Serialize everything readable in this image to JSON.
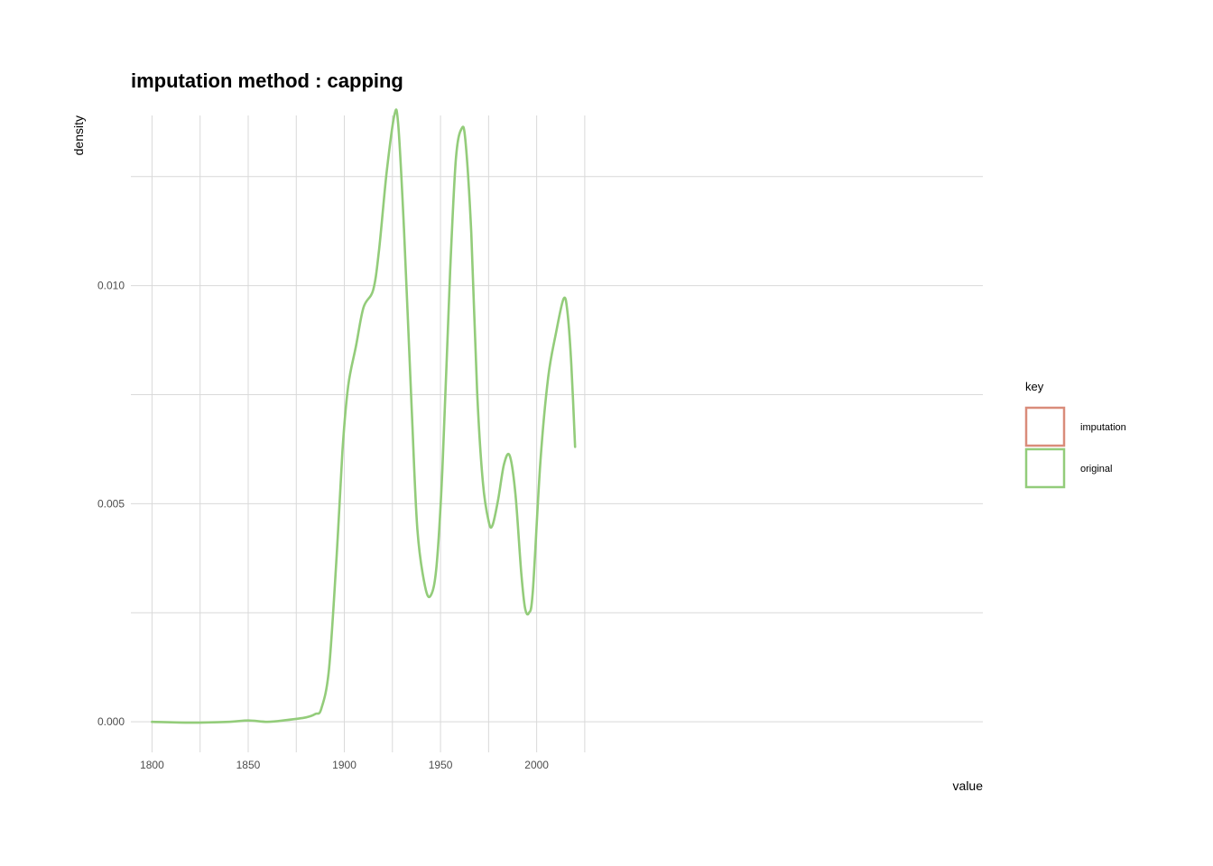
{
  "chart_data": {
    "type": "line",
    "title": "imputation method : capping",
    "xlabel": "value",
    "ylabel": "density",
    "xlim": [
      1789,
      2232
    ],
    "ylim": [
      -0.0007,
      0.0139
    ],
    "x_ticks": [
      1800,
      1850,
      1900,
      1950,
      2000
    ],
    "x_tick_labels": [
      "1800",
      "1850",
      "1900",
      "1950",
      "2000"
    ],
    "x_minor_gridlines": [
      1825,
      1875,
      1925,
      1975,
      2025
    ],
    "y_ticks": [
      0.0,
      0.005,
      0.01
    ],
    "y_tick_labels": [
      "0.000",
      "0.005",
      "0.010"
    ],
    "y_minor_gridlines": [
      0.0025,
      0.0075,
      0.0125
    ],
    "grid": true,
    "legend": {
      "title": "key",
      "position": "right",
      "entries": [
        {
          "label": "imputation",
          "color": "#d98c7a"
        },
        {
          "label": "original",
          "color": "#93cc7a"
        }
      ]
    },
    "series": [
      {
        "name": "original",
        "color": "#93cc7a",
        "x": [
          1800,
          1820,
          1840,
          1850,
          1860,
          1870,
          1880,
          1885,
          1888,
          1892,
          1896,
          1899,
          1902,
          1906,
          1910,
          1915,
          1918,
          1922,
          1926,
          1928,
          1931,
          1935,
          1938,
          1942,
          1945,
          1948,
          1951,
          1955,
          1958,
          1961,
          1963,
          1966,
          1969,
          1972,
          1975,
          1977,
          1980,
          1983,
          1986,
          1989,
          1992,
          1994,
          1996,
          1998,
          2002,
          2006,
          2010,
          2014,
          2016,
          2018,
          2020
        ],
        "y": [
          0.0,
          -2e-05,
          0.0,
          3e-05,
          0.0,
          4e-05,
          0.0001,
          0.00018,
          0.0003,
          0.0012,
          0.0038,
          0.0062,
          0.0077,
          0.0086,
          0.0095,
          0.0099,
          0.0108,
          0.0126,
          0.0139,
          0.0137,
          0.0113,
          0.0072,
          0.0044,
          0.0031,
          0.0029,
          0.0036,
          0.0058,
          0.0103,
          0.0129,
          0.0136,
          0.0133,
          0.0112,
          0.0076,
          0.0055,
          0.0046,
          0.0045,
          0.0051,
          0.0059,
          0.0061,
          0.0052,
          0.0034,
          0.0026,
          0.0025,
          0.003,
          0.006,
          0.0079,
          0.0089,
          0.0097,
          0.0094,
          0.0082,
          0.0063
        ]
      }
    ]
  }
}
